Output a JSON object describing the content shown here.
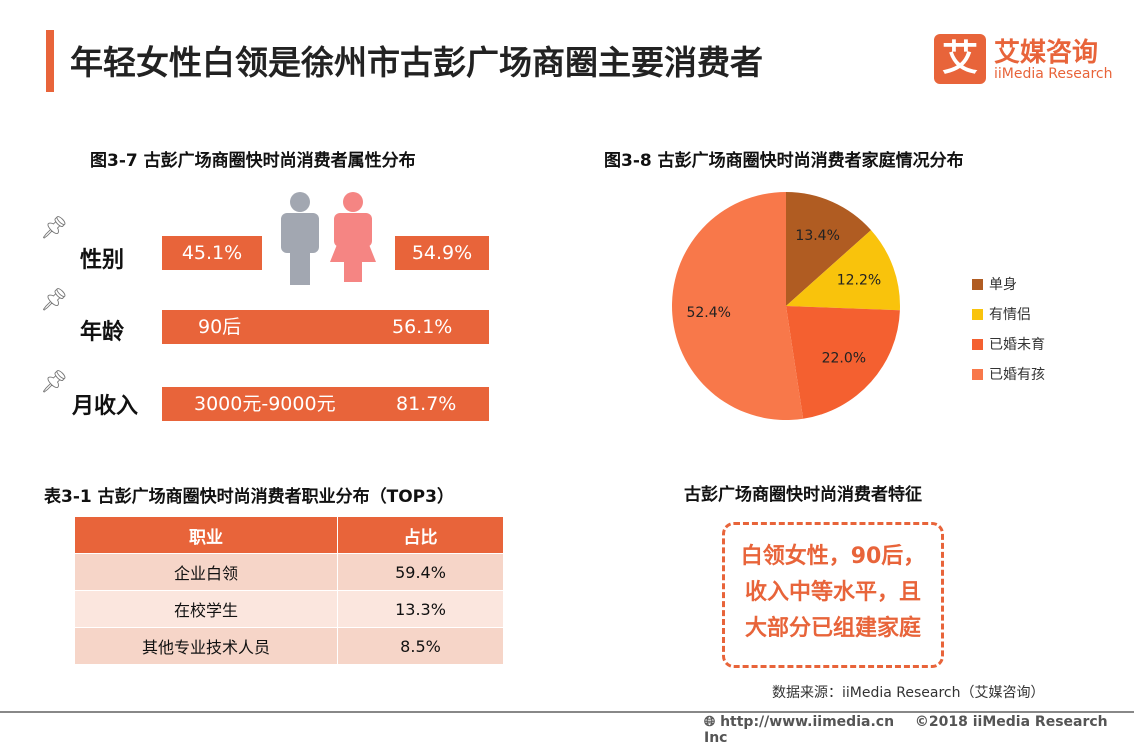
{
  "header": {
    "title": "年轻女性白领是徐州市古彭广场商圈主要消费者",
    "logo_mark": "艾",
    "logo_cn": "艾媒咨询",
    "logo_en": "iiMedia Research"
  },
  "fig37": {
    "title": "图3-7 古彭广场商圈快时尚消费者属性分布",
    "rows": [
      {
        "label": "性别",
        "male": "45.1%",
        "female": "54.9%"
      },
      {
        "label": "年龄",
        "value": "90后",
        "pct": "56.1%"
      },
      {
        "label": "月收入",
        "value": "3000元-9000元",
        "pct": "81.7%"
      }
    ],
    "male_color": "#a2a7b1",
    "female_color": "#f58583"
  },
  "chart_data": {
    "type": "pie",
    "title": "图3-8 古彭广场商圈快时尚消费者家庭情况分布",
    "categories": [
      "单身",
      "有情侣",
      "已婚未育",
      "已婚有孩"
    ],
    "values": [
      13.4,
      12.2,
      22.0,
      52.4
    ],
    "labels": [
      "13.4%",
      "12.2%",
      "22.0%",
      "52.4%"
    ],
    "colors": [
      "#b05c22",
      "#f9c30c",
      "#f46030",
      "#f8784a"
    ],
    "legend": "right"
  },
  "table31": {
    "title": "表3-1 古彭广场商圈快时尚消费者职业分布（TOP3）",
    "headers": [
      "职业",
      "占比"
    ],
    "rows": [
      [
        "企业白领",
        "59.4%"
      ],
      [
        "在校学生",
        "13.3%"
      ],
      [
        "其他专业技术人员",
        "8.5%"
      ]
    ]
  },
  "feature": {
    "title": "古彭广场商圈快时尚消费者特征",
    "lines": [
      "白领女性，90后，",
      "收入中等水平，且",
      "大部分已组建家庭"
    ]
  },
  "source": "数据来源：iiMedia Research（艾媒咨询）",
  "footer": {
    "url": "http://www.iimedia.cn",
    "copyright": "©2018  iiMedia Research  Inc"
  }
}
